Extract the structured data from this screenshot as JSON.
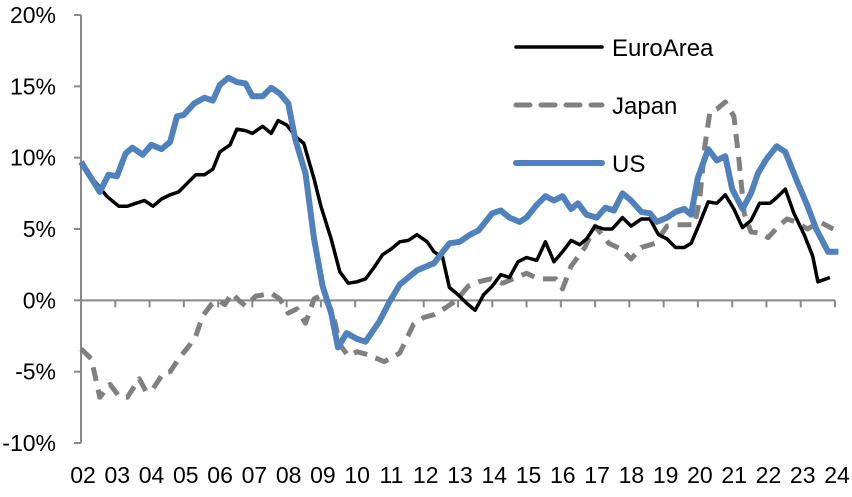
{
  "chart_data": {
    "type": "line",
    "title": "",
    "xlabel": "",
    "ylabel": "",
    "ylim": [
      -10,
      20
    ],
    "xlim": [
      2002,
      2024
    ],
    "grid": false,
    "legend_placement": "top-right",
    "y_ticks": [
      "-10%",
      "-5%",
      "0%",
      "5%",
      "10%",
      "15%",
      "20%"
    ],
    "y_tick_values": [
      -10,
      -5,
      0,
      5,
      10,
      15,
      20
    ],
    "x_ticks": [
      "02",
      "03",
      "04",
      "05",
      "06",
      "07",
      "08",
      "09",
      "10",
      "11",
      "12",
      "13",
      "14",
      "15",
      "16",
      "17",
      "18",
      "19",
      "20",
      "21",
      "22",
      "23",
      "24"
    ],
    "series": [
      {
        "name": "EuroArea",
        "color": "#000000",
        "style": "solid",
        "points": [
          [
            2002.0,
            9.5
          ],
          [
            2002.35,
            8.5
          ],
          [
            2002.75,
            7.3
          ],
          [
            2003.1,
            6.6
          ],
          [
            2003.35,
            6.6
          ],
          [
            2003.6,
            6.8
          ],
          [
            2003.85,
            7.0
          ],
          [
            2004.1,
            6.6
          ],
          [
            2004.35,
            7.1
          ],
          [
            2004.6,
            7.4
          ],
          [
            2004.85,
            7.6
          ],
          [
            2005.1,
            8.2
          ],
          [
            2005.35,
            8.8
          ],
          [
            2005.6,
            8.8
          ],
          [
            2005.85,
            9.2
          ],
          [
            2006.05,
            10.4
          ],
          [
            2006.35,
            10.9
          ],
          [
            2006.55,
            12.0
          ],
          [
            2006.8,
            11.9
          ],
          [
            2007.0,
            11.7
          ],
          [
            2007.3,
            12.2
          ],
          [
            2007.55,
            11.7
          ],
          [
            2007.75,
            12.6
          ],
          [
            2008.0,
            12.3
          ],
          [
            2008.3,
            11.4
          ],
          [
            2008.5,
            11.0
          ],
          [
            2008.8,
            8.5
          ],
          [
            2009.0,
            6.6
          ],
          [
            2009.3,
            4.3
          ],
          [
            2009.55,
            2.0
          ],
          [
            2009.8,
            1.2
          ],
          [
            2010.05,
            1.3
          ],
          [
            2010.3,
            1.5
          ],
          [
            2010.55,
            2.3
          ],
          [
            2010.8,
            3.2
          ],
          [
            2011.05,
            3.6
          ],
          [
            2011.3,
            4.1
          ],
          [
            2011.55,
            4.2
          ],
          [
            2011.8,
            4.6
          ],
          [
            2012.1,
            4.1
          ],
          [
            2012.3,
            3.4
          ],
          [
            2012.55,
            3.0
          ],
          [
            2012.75,
            0.9
          ],
          [
            2013.0,
            0.4
          ],
          [
            2013.25,
            -0.2
          ],
          [
            2013.5,
            -0.7
          ],
          [
            2013.75,
            0.4
          ],
          [
            2014.0,
            1.0
          ],
          [
            2014.25,
            1.8
          ],
          [
            2014.5,
            1.6
          ],
          [
            2014.75,
            2.7
          ],
          [
            2015.0,
            3.0
          ],
          [
            2015.3,
            2.8
          ],
          [
            2015.55,
            4.1
          ],
          [
            2015.8,
            2.7
          ],
          [
            2016.05,
            3.4
          ],
          [
            2016.3,
            4.2
          ],
          [
            2016.55,
            3.9
          ],
          [
            2016.75,
            4.3
          ],
          [
            2017.0,
            5.2
          ],
          [
            2017.25,
            5.0
          ],
          [
            2017.5,
            5.0
          ],
          [
            2017.8,
            5.8
          ],
          [
            2018.05,
            5.2
          ],
          [
            2018.35,
            5.7
          ],
          [
            2018.6,
            5.7
          ],
          [
            2018.85,
            4.6
          ],
          [
            2019.1,
            4.3
          ],
          [
            2019.35,
            3.7
          ],
          [
            2019.6,
            3.7
          ],
          [
            2019.8,
            4.0
          ],
          [
            2020.05,
            5.4
          ],
          [
            2020.3,
            6.9
          ],
          [
            2020.55,
            6.8
          ],
          [
            2020.8,
            7.4
          ],
          [
            2021.05,
            6.4
          ],
          [
            2021.3,
            5.1
          ],
          [
            2021.55,
            5.6
          ],
          [
            2021.8,
            6.8
          ],
          [
            2022.1,
            6.8
          ],
          [
            2022.3,
            7.2
          ],
          [
            2022.55,
            7.8
          ],
          [
            2022.8,
            6.1
          ],
          [
            2023.1,
            4.6
          ],
          [
            2023.35,
            3.1
          ],
          [
            2023.5,
            1.3
          ],
          [
            2023.85,
            1.6
          ]
        ]
      },
      {
        "name": "Japan",
        "color": "#808080",
        "style": "dashed",
        "points": [
          [
            2002.0,
            -3.4
          ],
          [
            2002.3,
            -4.1
          ],
          [
            2002.55,
            -6.8
          ],
          [
            2002.85,
            -5.9
          ],
          [
            2003.1,
            -6.7
          ],
          [
            2003.35,
            -6.8
          ],
          [
            2003.7,
            -5.5
          ],
          [
            2003.9,
            -6.4
          ],
          [
            2004.1,
            -6.2
          ],
          [
            2004.4,
            -5.1
          ],
          [
            2004.6,
            -5.0
          ],
          [
            2004.85,
            -4.1
          ],
          [
            2005.15,
            -3.2
          ],
          [
            2005.35,
            -2.5
          ],
          [
            2005.55,
            -1.1
          ],
          [
            2005.8,
            -0.3
          ],
          [
            2006.0,
            0.0
          ],
          [
            2006.2,
            -0.3
          ],
          [
            2006.4,
            0.5
          ],
          [
            2006.6,
            0.0
          ],
          [
            2006.8,
            -0.4
          ],
          [
            2007.1,
            0.3
          ],
          [
            2007.35,
            0.4
          ],
          [
            2007.55,
            0.5
          ],
          [
            2007.8,
            0.1
          ],
          [
            2008.05,
            -0.9
          ],
          [
            2008.3,
            -0.6
          ],
          [
            2008.55,
            -1.6
          ],
          [
            2008.8,
            0.1
          ],
          [
            2009.05,
            0.4
          ],
          [
            2009.35,
            -0.9
          ],
          [
            2009.55,
            -3.1
          ],
          [
            2009.8,
            -3.9
          ],
          [
            2010.05,
            -3.6
          ],
          [
            2010.35,
            -3.8
          ],
          [
            2010.85,
            -4.3
          ],
          [
            2011.3,
            -3.7
          ],
          [
            2011.7,
            -1.7
          ],
          [
            2012.0,
            -1.2
          ],
          [
            2012.3,
            -1.0
          ],
          [
            2012.65,
            -0.5
          ],
          [
            2012.95,
            0.0
          ],
          [
            2013.3,
            1.0
          ],
          [
            2013.6,
            1.3
          ],
          [
            2013.95,
            1.5
          ],
          [
            2014.3,
            1.2
          ],
          [
            2014.7,
            1.6
          ],
          [
            2015.0,
            1.9
          ],
          [
            2015.35,
            1.5
          ],
          [
            2015.85,
            1.5
          ],
          [
            2016.05,
            0.8
          ],
          [
            2016.3,
            2.4
          ],
          [
            2016.7,
            3.7
          ],
          [
            2017.0,
            5.2
          ],
          [
            2017.4,
            4.0
          ],
          [
            2017.75,
            3.6
          ],
          [
            2018.05,
            2.9
          ],
          [
            2018.35,
            3.7
          ],
          [
            2018.75,
            4.0
          ],
          [
            2019.1,
            5.2
          ],
          [
            2019.4,
            5.3
          ],
          [
            2019.9,
            5.3
          ],
          [
            2020.05,
            7.0
          ],
          [
            2020.2,
            10.8
          ],
          [
            2020.35,
            13.2
          ],
          [
            2020.55,
            13.4
          ],
          [
            2020.8,
            13.9
          ],
          [
            2021.05,
            12.9
          ],
          [
            2021.2,
            9.8
          ],
          [
            2021.35,
            6.1
          ],
          [
            2021.55,
            4.8
          ],
          [
            2021.85,
            4.7
          ],
          [
            2022.05,
            4.4
          ],
          [
            2022.35,
            5.2
          ],
          [
            2022.6,
            5.7
          ],
          [
            2022.85,
            5.5
          ],
          [
            2023.2,
            5.0
          ],
          [
            2023.55,
            5.5
          ],
          [
            2023.95,
            5.0
          ]
        ]
      },
      {
        "name": "US",
        "color": "#4f81bd",
        "style": "solid",
        "points": [
          [
            2002.0,
            9.7
          ],
          [
            2002.55,
            7.6
          ],
          [
            2002.8,
            8.8
          ],
          [
            2003.05,
            8.7
          ],
          [
            2003.3,
            10.3
          ],
          [
            2003.5,
            10.7
          ],
          [
            2003.8,
            10.2
          ],
          [
            2004.05,
            10.9
          ],
          [
            2004.35,
            10.6
          ],
          [
            2004.6,
            11.1
          ],
          [
            2004.8,
            12.9
          ],
          [
            2005.0,
            13.0
          ],
          [
            2005.3,
            13.8
          ],
          [
            2005.6,
            14.2
          ],
          [
            2005.85,
            14.0
          ],
          [
            2006.05,
            15.1
          ],
          [
            2006.3,
            15.6
          ],
          [
            2006.55,
            15.3
          ],
          [
            2006.8,
            15.2
          ],
          [
            2007.0,
            14.3
          ],
          [
            2007.3,
            14.3
          ],
          [
            2007.55,
            14.9
          ],
          [
            2007.8,
            14.5
          ],
          [
            2008.05,
            13.8
          ],
          [
            2008.25,
            11.3
          ],
          [
            2008.55,
            8.9
          ],
          [
            2008.8,
            4.3
          ],
          [
            2009.05,
            1.0
          ],
          [
            2009.3,
            -0.9
          ],
          [
            2009.5,
            -3.3
          ],
          [
            2009.75,
            -2.3
          ],
          [
            2010.05,
            -2.7
          ],
          [
            2010.3,
            -2.9
          ],
          [
            2010.7,
            -1.5
          ],
          [
            2011.0,
            -0.1
          ],
          [
            2011.3,
            1.1
          ],
          [
            2011.8,
            2.1
          ],
          [
            2012.3,
            2.6
          ],
          [
            2012.75,
            4.0
          ],
          [
            2013.05,
            4.1
          ],
          [
            2013.35,
            4.6
          ],
          [
            2013.6,
            4.9
          ],
          [
            2014.0,
            6.1
          ],
          [
            2014.25,
            6.3
          ],
          [
            2014.5,
            5.8
          ],
          [
            2014.8,
            5.5
          ],
          [
            2015.0,
            5.8
          ],
          [
            2015.3,
            6.7
          ],
          [
            2015.55,
            7.3
          ],
          [
            2015.8,
            7.0
          ],
          [
            2016.05,
            7.3
          ],
          [
            2016.3,
            6.4
          ],
          [
            2016.5,
            6.8
          ],
          [
            2016.75,
            6.0
          ],
          [
            2017.05,
            5.8
          ],
          [
            2017.3,
            6.5
          ],
          [
            2017.55,
            6.3
          ],
          [
            2017.8,
            7.5
          ],
          [
            2018.05,
            7.0
          ],
          [
            2018.35,
            6.2
          ],
          [
            2018.6,
            6.1
          ],
          [
            2018.8,
            5.5
          ],
          [
            2019.1,
            5.8
          ],
          [
            2019.35,
            6.2
          ],
          [
            2019.6,
            6.4
          ],
          [
            2019.8,
            6.0
          ],
          [
            2020.0,
            8.6
          ],
          [
            2020.3,
            10.6
          ],
          [
            2020.55,
            9.8
          ],
          [
            2020.8,
            10.1
          ],
          [
            2021.0,
            7.8
          ],
          [
            2021.3,
            6.4
          ],
          [
            2021.55,
            7.5
          ],
          [
            2021.75,
            8.9
          ],
          [
            2022.0,
            9.9
          ],
          [
            2022.3,
            10.8
          ],
          [
            2022.55,
            10.4
          ],
          [
            2022.9,
            8.3
          ],
          [
            2023.2,
            6.6
          ],
          [
            2023.45,
            5.0
          ],
          [
            2023.8,
            3.4
          ],
          [
            2024.1,
            3.4
          ]
        ]
      }
    ]
  }
}
